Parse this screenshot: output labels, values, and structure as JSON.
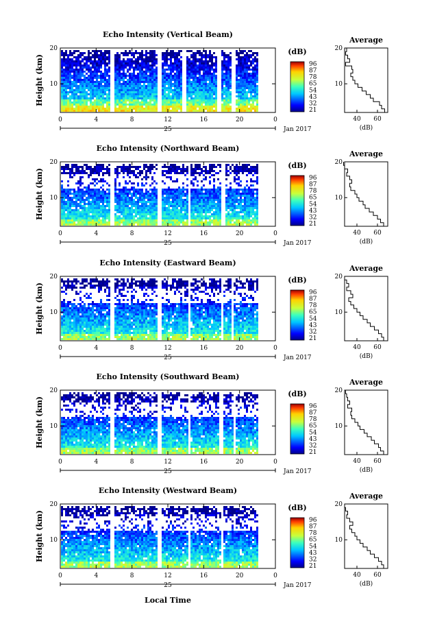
{
  "figure": {
    "x_axis_title": "Local Time",
    "date_label": "Jan 2017",
    "date_tick_label": "25"
  },
  "chart_data": [
    {
      "type": "heatmap",
      "title": "Echo Intensity (Vertical Beam)",
      "ylabel": "Height (km)",
      "xlim": [
        0,
        24
      ],
      "ylim": [
        2,
        20
      ],
      "xticks": [
        "0",
        "4",
        "8",
        "12",
        "16",
        "20",
        "0"
      ],
      "yticks": [
        "10",
        "20"
      ],
      "colorbar_label": "(dB)",
      "colorbar_ticks": [
        "96",
        "87",
        "78",
        "65",
        "54",
        "43",
        "32",
        "21"
      ],
      "gaps_hours": [
        [
          5.5,
          5.9
        ],
        [
          10.8,
          11.1
        ],
        [
          13.6,
          14.0
        ],
        [
          17.5,
          17.9
        ],
        [
          19.0,
          19.4
        ],
        [
          22.0,
          24.0
        ]
      ],
      "average_profile": {
        "title": "Average",
        "xlabel": "(dB)",
        "xticks": [
          "40",
          "60"
        ],
        "height_km": [
          20,
          19,
          18,
          17,
          16,
          15,
          14,
          13,
          12,
          11,
          10,
          9,
          8,
          7,
          6,
          5,
          4,
          3,
          2
        ],
        "db": [
          30,
          29,
          31,
          33,
          29,
          35,
          36,
          34,
          36,
          38,
          41,
          45,
          49,
          53,
          56,
          62,
          64,
          67,
          70
        ]
      }
    },
    {
      "type": "heatmap",
      "title": "Echo Intensity (Northward Beam)",
      "ylabel": "Height (km)",
      "xlim": [
        0,
        24
      ],
      "ylim": [
        2,
        20
      ],
      "xticks": [
        "0",
        "4",
        "8",
        "12",
        "16",
        "20",
        "0"
      ],
      "yticks": [
        "10",
        "20"
      ],
      "colorbar_label": "(dB)",
      "colorbar_ticks": [
        "96",
        "87",
        "78",
        "65",
        "54",
        "43",
        "32",
        "21"
      ],
      "gaps_hours": [
        [
          5.5,
          5.9
        ],
        [
          10.8,
          11.1
        ],
        [
          14.2,
          14.5
        ],
        [
          17.9,
          18.3
        ],
        [
          22.0,
          24.0
        ]
      ],
      "average_profile": {
        "title": "Average",
        "xlabel": "(dB)",
        "xticks": [
          "40",
          "60"
        ],
        "height_km": [
          20,
          19,
          18,
          17,
          16,
          15,
          14,
          13,
          12,
          11,
          10,
          9,
          8,
          7,
          6,
          5,
          4,
          3,
          2
        ],
        "db": [
          27,
          28,
          31,
          30,
          33,
          35,
          33,
          34,
          38,
          40,
          42,
          46,
          48,
          52,
          56,
          60,
          63,
          66,
          68
        ]
      }
    },
    {
      "type": "heatmap",
      "title": "Echo Intensity (Eastward Beam)",
      "ylabel": "Height (km)",
      "xlim": [
        0,
        24
      ],
      "ylim": [
        2,
        20
      ],
      "xticks": [
        "0",
        "4",
        "8",
        "12",
        "16",
        "20",
        "0"
      ],
      "yticks": [
        "10",
        "20"
      ],
      "colorbar_label": "(dB)",
      "colorbar_ticks": [
        "96",
        "87",
        "78",
        "65",
        "54",
        "43",
        "32",
        "21"
      ],
      "gaps_hours": [
        [
          5.5,
          5.9
        ],
        [
          10.8,
          11.1
        ],
        [
          14.2,
          14.5
        ],
        [
          17.8,
          18.1
        ],
        [
          19.0,
          19.3
        ],
        [
          22.0,
          24.0
        ]
      ],
      "average_profile": {
        "title": "Average",
        "xlabel": "(dB)",
        "xticks": [
          "40",
          "60"
        ],
        "height_km": [
          20,
          19,
          18,
          17,
          16,
          15,
          14,
          13,
          12,
          11,
          10,
          9,
          8,
          7,
          6,
          5,
          4,
          3,
          2
        ],
        "db": [
          28,
          30,
          32,
          30,
          34,
          36,
          32,
          34,
          37,
          40,
          43,
          46,
          50,
          53,
          57,
          61,
          64,
          66,
          69
        ]
      }
    },
    {
      "type": "heatmap",
      "title": "Echo Intensity (Southward Beam)",
      "ylabel": "Height (km)",
      "xlim": [
        0,
        24
      ],
      "ylim": [
        2,
        20
      ],
      "xticks": [
        "0",
        "4",
        "8",
        "12",
        "16",
        "20",
        "0"
      ],
      "yticks": [
        "10",
        "20"
      ],
      "colorbar_label": "(dB)",
      "colorbar_ticks": [
        "96",
        "87",
        "78",
        "65",
        "54",
        "43",
        "32",
        "21"
      ],
      "gaps_hours": [
        [
          5.5,
          5.9
        ],
        [
          10.8,
          11.1
        ],
        [
          14.2,
          14.5
        ],
        [
          17.6,
          18.0
        ],
        [
          19.2,
          19.5
        ],
        [
          22.0,
          24.0
        ]
      ],
      "average_profile": {
        "title": "Average",
        "xlabel": "(dB)",
        "xticks": [
          "40",
          "60"
        ],
        "height_km": [
          20,
          19,
          18,
          17,
          16,
          15,
          14,
          13,
          12,
          11,
          10,
          9,
          8,
          7,
          6,
          5,
          4,
          3,
          2
        ],
        "db": [
          29,
          30,
          31,
          33,
          31,
          35,
          34,
          35,
          38,
          41,
          43,
          47,
          50,
          54,
          57,
          61,
          63,
          66,
          69
        ]
      }
    },
    {
      "type": "heatmap",
      "title": "Echo Intensity (Westward Beam)",
      "ylabel": "Height (km)",
      "xlim": [
        0,
        24
      ],
      "ylim": [
        2,
        20
      ],
      "xticks": [
        "0",
        "4",
        "8",
        "12",
        "16",
        "20",
        "0"
      ],
      "yticks": [
        "10",
        "20"
      ],
      "colorbar_label": "(dB)",
      "colorbar_ticks": [
        "96",
        "87",
        "78",
        "65",
        "54",
        "43",
        "32",
        "21"
      ],
      "gaps_hours": [
        [
          5.5,
          5.9
        ],
        [
          10.8,
          11.1
        ],
        [
          14.2,
          14.5
        ],
        [
          17.8,
          18.1
        ],
        [
          22.0,
          24.0
        ]
      ],
      "average_profile": {
        "title": "Average",
        "xlabel": "(dB)",
        "xticks": [
          "40",
          "60"
        ],
        "height_km": [
          20,
          19,
          18,
          17,
          16,
          15,
          14,
          13,
          12,
          11,
          10,
          9,
          8,
          7,
          6,
          5,
          4,
          3,
          2
        ],
        "db": [
          28,
          29,
          31,
          30,
          33,
          36,
          33,
          35,
          38,
          40,
          43,
          46,
          50,
          53,
          57,
          61,
          64,
          66,
          69
        ]
      }
    }
  ]
}
